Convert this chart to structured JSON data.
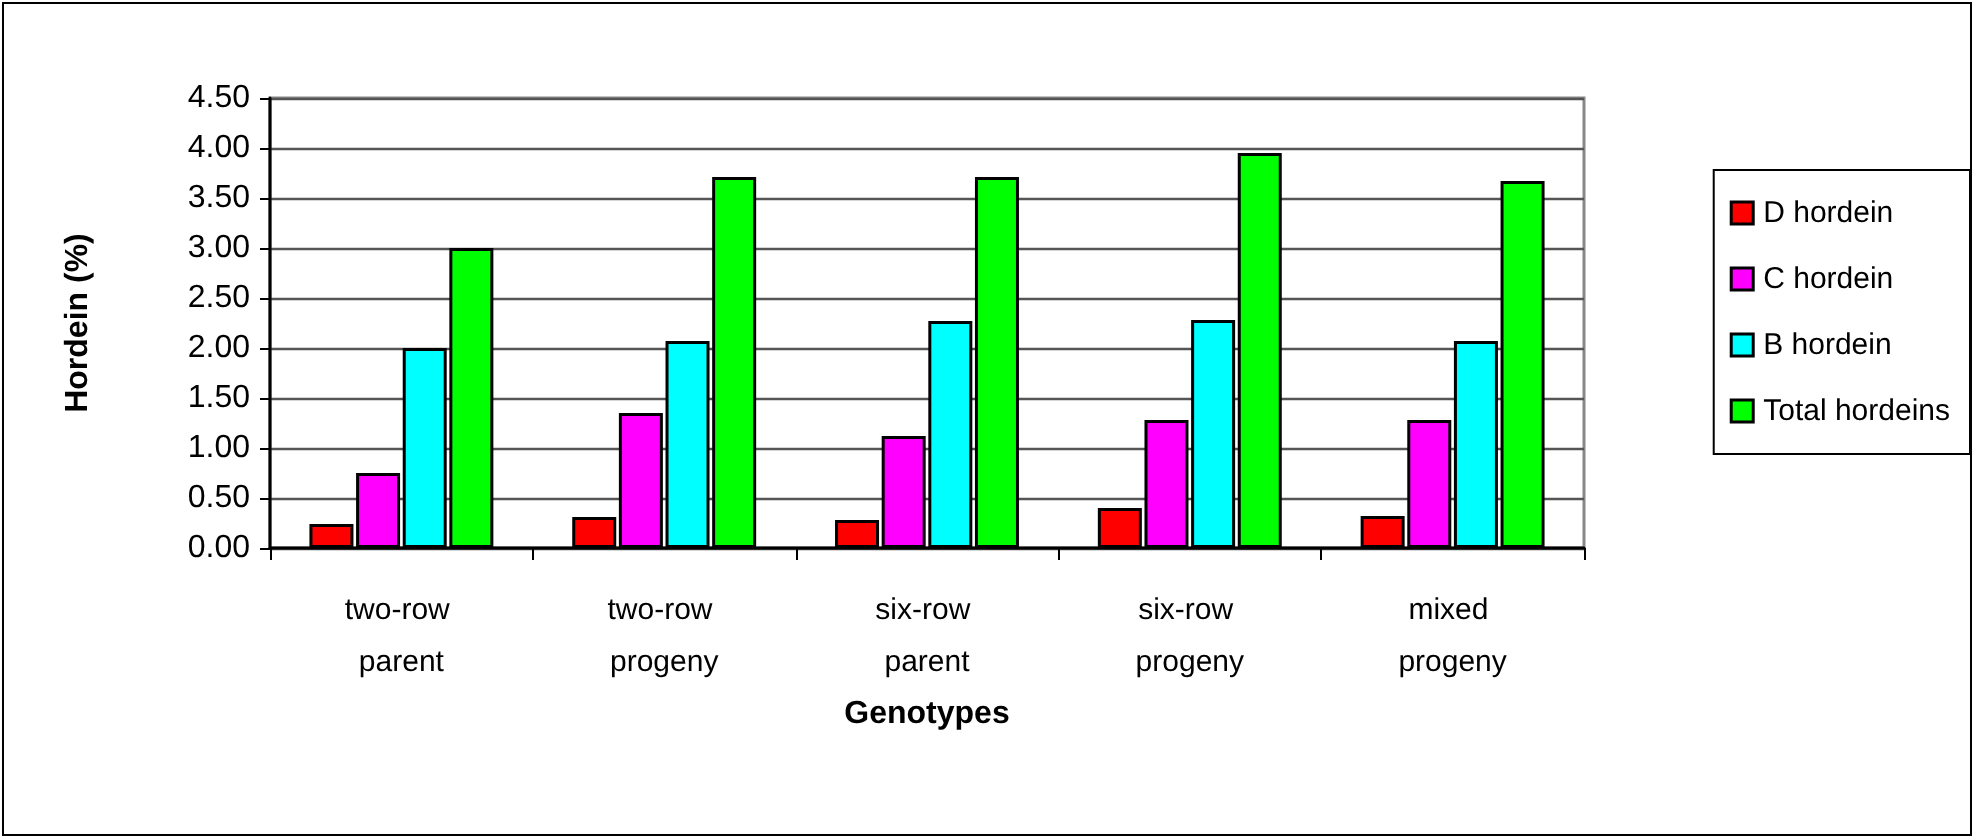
{
  "chart_data": {
    "type": "bar",
    "xlabel": "Genotypes",
    "ylabel": "Hordein (%)",
    "categories": [
      "two-row parent",
      "two-row progeny",
      "six-row parent",
      "six-row progeny",
      "mixed progeny"
    ],
    "series": [
      {
        "name": "D hordein",
        "color": "#ff0000",
        "values": [
          0.24,
          0.31,
          0.28,
          0.4,
          0.32
        ]
      },
      {
        "name": "C hordein",
        "color": "#ff00ff",
        "values": [
          0.75,
          1.35,
          1.12,
          1.28,
          1.28
        ]
      },
      {
        "name": "B hordein",
        "color": "#00ffff",
        "values": [
          2.0,
          2.07,
          2.27,
          2.28,
          2.07
        ]
      },
      {
        "name": "Total hordeins",
        "color": "#00ff00",
        "values": [
          3.0,
          3.71,
          3.71,
          3.95,
          3.67
        ]
      }
    ],
    "ylim": [
      0,
      4.5
    ],
    "yticks": [
      {
        "value": 0,
        "label": "0.00"
      },
      {
        "value": 0.5,
        "label": "0.50"
      },
      {
        "value": 1,
        "label": "1.00"
      },
      {
        "value": 1.5,
        "label": "1.50"
      },
      {
        "value": 2,
        "label": "2.00"
      },
      {
        "value": 2.5,
        "label": "2.50"
      },
      {
        "value": 3,
        "label": "3.00"
      },
      {
        "value": 3.5,
        "label": "3.50"
      },
      {
        "value": 4,
        "label": "4.00"
      },
      {
        "value": 4.5,
        "label": "4.50"
      }
    ],
    "grid": "y",
    "legend": "right"
  }
}
